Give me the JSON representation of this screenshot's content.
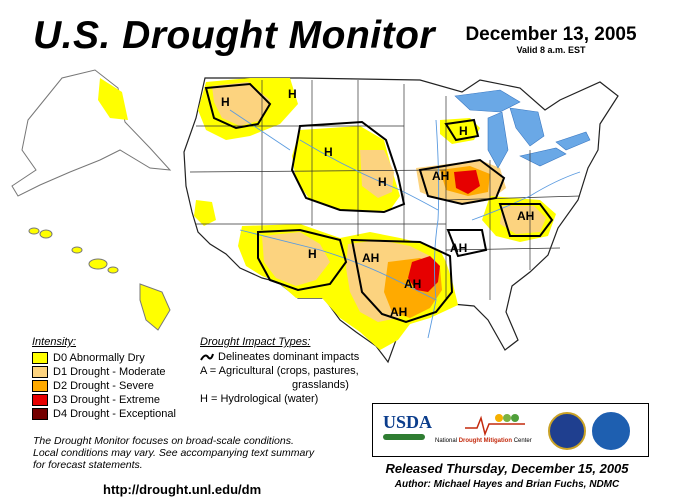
{
  "header": {
    "title": "U.S. Drought Monitor",
    "date": "December 13, 2005",
    "valid": "Valid 8 a.m. EST"
  },
  "map": {
    "impact_labels": [
      "H",
      "H",
      "H",
      "H",
      "H",
      "H",
      "AH",
      "AH",
      "AH",
      "AH",
      "AH",
      "AH"
    ],
    "colors": {
      "D0": "#ffff00",
      "D1": "#fcd37f",
      "D2": "#ffaa00",
      "D3": "#e60000",
      "D4": "#730000",
      "water": "#6aa8e6",
      "land": "#ffffff"
    }
  },
  "legend": {
    "heading": "Intensity:",
    "items": [
      {
        "label": "D0 Abnormally Dry",
        "color": "#ffff00"
      },
      {
        "label": "D1 Drought - Moderate",
        "color": "#fcd37f"
      },
      {
        "label": "D2 Drought - Severe",
        "color": "#ffaa00"
      },
      {
        "label": "D3 Drought - Extreme",
        "color": "#e60000"
      },
      {
        "label": "D4 Drought - Exceptional",
        "color": "#730000"
      }
    ]
  },
  "impacts": {
    "heading": "Drought Impact Types:",
    "line": "Delineates dominant impacts",
    "agri_1": "A = Agricultural (crops, pastures,",
    "agri_2": "grasslands)",
    "hydro": "H = Hydrological (water)"
  },
  "note": {
    "line1": "The Drought Monitor focuses on broad-scale conditions.",
    "line2": "Local conditions may vary.  See accompanying text summary",
    "line3": "for forecast statements."
  },
  "footer": {
    "url": "http://drought.unl.edu/dm",
    "released": "Released Thursday, December 15, 2005",
    "authors": "Author: Michael Hayes and Brian Fuchs, NDMC"
  },
  "logos": {
    "usda": "USDA",
    "ndmc_1": "National",
    "ndmc_2": "Drought Mitigation",
    "ndmc_3": "Center"
  }
}
